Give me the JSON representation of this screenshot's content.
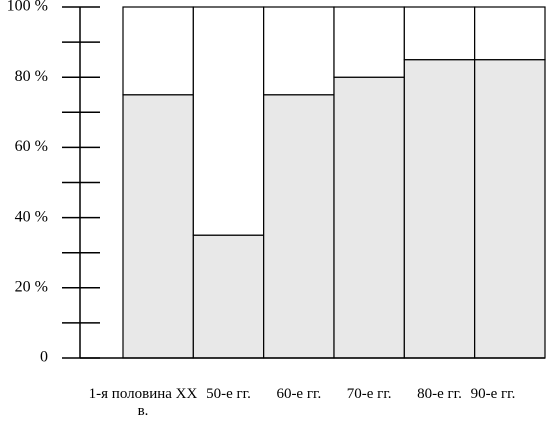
{
  "chart_data": {
    "type": "stacked_bar",
    "categories": [
      "1-я половина XX в.",
      "50-е гг.",
      "60-е гг.",
      "70-е гг.",
      "80-е гг.",
      "90-е гг."
    ],
    "series": [
      {
        "color": "#e8e8e8",
        "values": [
          75,
          35,
          75,
          80,
          85,
          85
        ]
      },
      {
        "color": "#ffffff",
        "values": [
          25,
          65,
          25,
          20,
          15,
          15
        ]
      }
    ],
    "ylim": [
      0,
      100
    ],
    "yticks": [
      0,
      {
        "value": 20,
        "label": "20 %"
      },
      {
        "value": 40,
        "label": "40 %"
      },
      {
        "value": 60,
        "label": "60 %"
      },
      {
        "value": 80,
        "label": "80 %"
      },
      {
        "value": 100,
        "label": "100 %"
      }
    ],
    "yminorticks": [
      10,
      30,
      50,
      70,
      90
    ]
  }
}
